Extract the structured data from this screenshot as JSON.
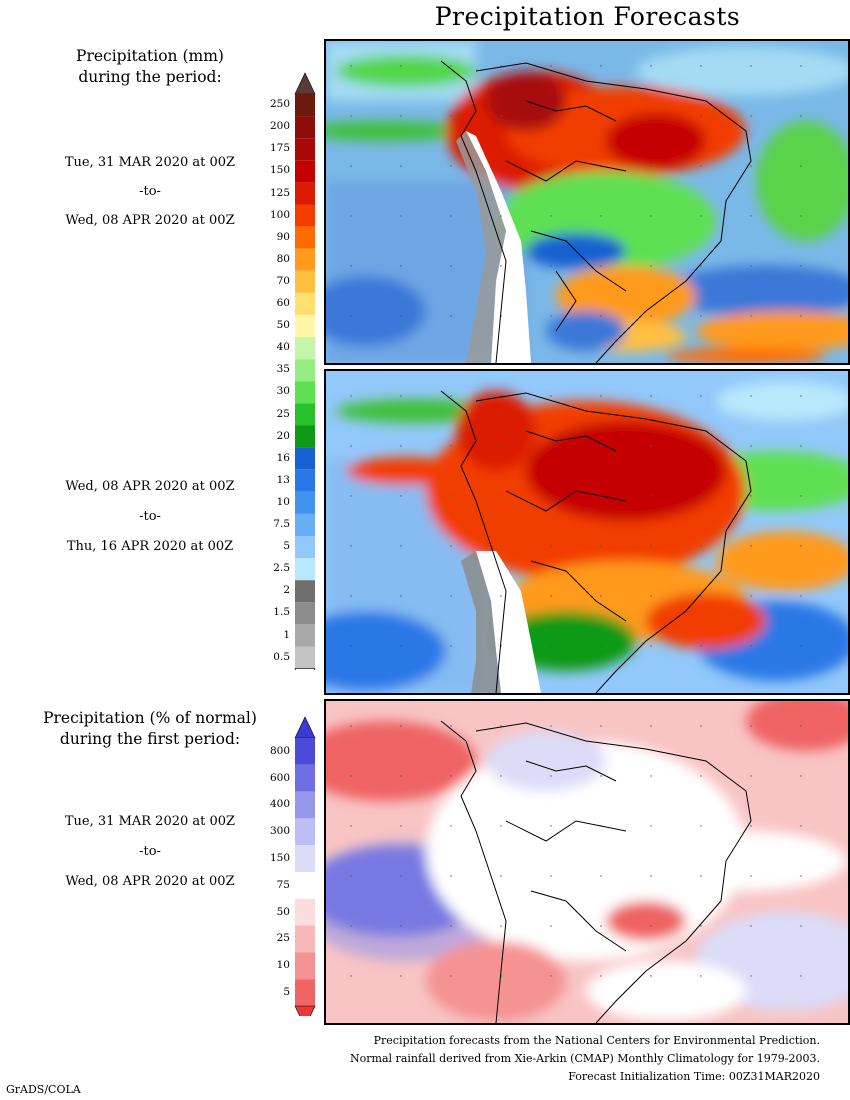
{
  "title": "Precipitation Forecasts",
  "precip_block": {
    "heading_line1": "Precipitation (mm)",
    "heading_line2": "during the period:"
  },
  "period1": {
    "start": "Tue, 31 MAR 2020 at 00Z",
    "sep": "-to-",
    "end": "Wed, 08 APR 2020 at 00Z"
  },
  "period2": {
    "start": "Wed, 08 APR 2020 at 00Z",
    "sep": "-to-",
    "end": "Thu, 16 APR 2020 at 00Z"
  },
  "anomaly_block": {
    "heading_line1": "Precipitation (% of normal)",
    "heading_line2": "during the first period:",
    "start": "Tue, 31 MAR 2020 at 00Z",
    "sep": "-to-",
    "end": "Wed, 08 APR 2020 at 00Z"
  },
  "precip_scale": {
    "labels": [
      "250",
      "200",
      "175",
      "150",
      "125",
      "100",
      "90",
      "80",
      "70",
      "60",
      "50",
      "40",
      "35",
      "30",
      "25",
      "20",
      "16",
      "13",
      "10",
      "7.5",
      "5",
      "2.5",
      "2",
      "1.5",
      "1",
      "0.5"
    ],
    "colors": [
      "#6b1a0e",
      "#8c0c0c",
      "#a80808",
      "#c40000",
      "#dc1a00",
      "#f23c00",
      "#ff6a00",
      "#ff9a1a",
      "#ffc040",
      "#ffe070",
      "#fff6a8",
      "#c4f5a8",
      "#96ee82",
      "#5ee052",
      "#28c028",
      "#0f9a16",
      "#1660d2",
      "#2a78e6",
      "#4292f0",
      "#66aef5",
      "#92c8fa",
      "#b8e8fb",
      "#6e6e6e",
      "#8c8c8c",
      "#a8a8a8",
      "#c4c4c4"
    ],
    "top_arrow_color": "#5a3a36"
  },
  "anomaly_scale": {
    "labels": [
      "800",
      "600",
      "400",
      "300",
      "150",
      "75",
      "50",
      "25",
      "10",
      "5"
    ],
    "colors": [
      "#4b4bd8",
      "#6f6fe2",
      "#9696ea",
      "#bebef4",
      "#dcdcf8",
      "#ffffff",
      "#fcdcdc",
      "#f8b8b8",
      "#f59292",
      "#ef6464"
    ],
    "top_arrow_color": "#3a3ad4",
    "bottom_arrow_color": "#e83838"
  },
  "footer": {
    "line1": "Precipitation forecasts from the National Centers for Environmental Prediction.",
    "line2": "Normal rainfall derived from Xie-Arkin (CMAP) Monthly Climatology for 1979-2003.",
    "line3": "Forecast Initialization Time: 00Z31MAR2020"
  },
  "credit": "GrADS/COLA"
}
